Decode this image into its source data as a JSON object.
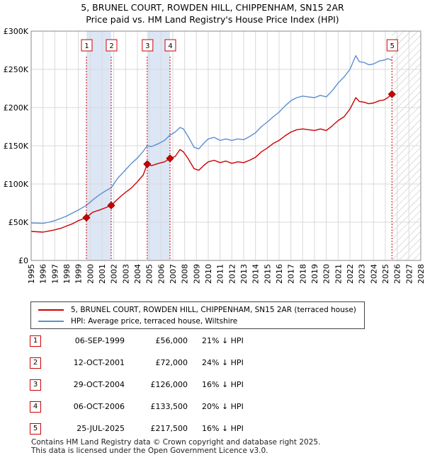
{
  "title_line1": "5, BRUNEL COURT, ROWDEN HILL, CHIPPENHAM, SN15 2AR",
  "title_line2": "Price paid vs. HM Land Registry's House Price Index (HPI)",
  "chart_data": {
    "type": "line",
    "x_range": [
      1995,
      2028
    ],
    "y_range": [
      0,
      300000
    ],
    "y_ticks": [
      0,
      50000,
      100000,
      150000,
      200000,
      250000,
      300000
    ],
    "y_tick_labels": [
      "£0",
      "£50K",
      "£100K",
      "£150K",
      "£200K",
      "£250K",
      "£300K"
    ],
    "x_ticks": [
      1995,
      1996,
      1997,
      1998,
      1999,
      2000,
      2001,
      2002,
      2003,
      2004,
      2005,
      2006,
      2007,
      2008,
      2009,
      2010,
      2011,
      2012,
      2013,
      2014,
      2015,
      2016,
      2017,
      2018,
      2019,
      2020,
      2021,
      2022,
      2023,
      2024,
      2025,
      2026,
      2027,
      2028
    ],
    "forecast_start": 2025.6,
    "colors": {
      "property": "#cc0000",
      "hpi": "#5b8fd0",
      "band": "#dde6f5"
    },
    "bands": [
      [
        1999.68,
        2001.78
      ],
      [
        2004.83,
        2006.76
      ]
    ],
    "series": [
      {
        "name": "5, BRUNEL COURT, ROWDEN HILL, CHIPPENHAM, SN15 2AR (terraced house)",
        "points": [
          [
            1995.0,
            38000
          ],
          [
            1996.0,
            37000
          ],
          [
            1996.5,
            38500
          ],
          [
            1997.0,
            40000
          ],
          [
            1997.5,
            42000
          ],
          [
            1998.0,
            45000
          ],
          [
            1998.5,
            48000
          ],
          [
            1999.0,
            52000
          ],
          [
            1999.68,
            56000
          ],
          [
            2000.2,
            63000
          ],
          [
            2000.8,
            66000
          ],
          [
            2001.3,
            69000
          ],
          [
            2001.78,
            72000
          ],
          [
            2002.3,
            80000
          ],
          [
            2002.9,
            88000
          ],
          [
            2003.5,
            95000
          ],
          [
            2004.0,
            103000
          ],
          [
            2004.5,
            112000
          ],
          [
            2004.83,
            126000
          ],
          [
            2005.2,
            124000
          ],
          [
            2005.8,
            127000
          ],
          [
            2006.3,
            129000
          ],
          [
            2006.76,
            133500
          ],
          [
            2007.2,
            136000
          ],
          [
            2007.6,
            145000
          ],
          [
            2007.9,
            142000
          ],
          [
            2008.3,
            133000
          ],
          [
            2008.8,
            120000
          ],
          [
            2009.2,
            118000
          ],
          [
            2009.6,
            124000
          ],
          [
            2010.0,
            129000
          ],
          [
            2010.5,
            131000
          ],
          [
            2011.0,
            128000
          ],
          [
            2011.5,
            130000
          ],
          [
            2012.0,
            127000
          ],
          [
            2012.5,
            129000
          ],
          [
            2013.0,
            128000
          ],
          [
            2013.5,
            131000
          ],
          [
            2014.0,
            135000
          ],
          [
            2014.5,
            142000
          ],
          [
            2015.0,
            147000
          ],
          [
            2015.5,
            153000
          ],
          [
            2016.0,
            157000
          ],
          [
            2016.5,
            163000
          ],
          [
            2017.0,
            168000
          ],
          [
            2017.5,
            171000
          ],
          [
            2018.0,
            172000
          ],
          [
            2018.5,
            171000
          ],
          [
            2019.0,
            170000
          ],
          [
            2019.5,
            172000
          ],
          [
            2020.0,
            170000
          ],
          [
            2020.5,
            176000
          ],
          [
            2021.0,
            183000
          ],
          [
            2021.5,
            188000
          ],
          [
            2022.0,
            198000
          ],
          [
            2022.5,
            213000
          ],
          [
            2022.8,
            208000
          ],
          [
            2023.2,
            207000
          ],
          [
            2023.6,
            205000
          ],
          [
            2024.0,
            206000
          ],
          [
            2024.5,
            209000
          ],
          [
            2024.9,
            210000
          ],
          [
            2025.2,
            213000
          ],
          [
            2025.56,
            217500
          ]
        ]
      },
      {
        "name": "HPI: Average price, terraced house, Wiltshire",
        "points": [
          [
            1995.0,
            49000
          ],
          [
            1996.0,
            48500
          ],
          [
            1996.5,
            50000
          ],
          [
            1997.0,
            52000
          ],
          [
            1997.5,
            55000
          ],
          [
            1998.0,
            58000
          ],
          [
            1998.5,
            62000
          ],
          [
            1999.0,
            66000
          ],
          [
            1999.68,
            72000
          ],
          [
            2000.2,
            79000
          ],
          [
            2000.8,
            86000
          ],
          [
            2001.3,
            91000
          ],
          [
            2001.78,
            95000
          ],
          [
            2002.3,
            107000
          ],
          [
            2002.9,
            117000
          ],
          [
            2003.5,
            127000
          ],
          [
            2004.0,
            134000
          ],
          [
            2004.5,
            143000
          ],
          [
            2004.83,
            150000
          ],
          [
            2005.2,
            149000
          ],
          [
            2005.8,
            153000
          ],
          [
            2006.3,
            157000
          ],
          [
            2006.76,
            164000
          ],
          [
            2007.2,
            168000
          ],
          [
            2007.6,
            174000
          ],
          [
            2007.9,
            172000
          ],
          [
            2008.3,
            162000
          ],
          [
            2008.8,
            148000
          ],
          [
            2009.2,
            146000
          ],
          [
            2009.6,
            153000
          ],
          [
            2010.0,
            159000
          ],
          [
            2010.5,
            161000
          ],
          [
            2011.0,
            157000
          ],
          [
            2011.5,
            159000
          ],
          [
            2012.0,
            157000
          ],
          [
            2012.5,
            159000
          ],
          [
            2013.0,
            158000
          ],
          [
            2013.5,
            162000
          ],
          [
            2014.0,
            167000
          ],
          [
            2014.5,
            175000
          ],
          [
            2015.0,
            181000
          ],
          [
            2015.5,
            188000
          ],
          [
            2016.0,
            194000
          ],
          [
            2016.5,
            202000
          ],
          [
            2017.0,
            209000
          ],
          [
            2017.5,
            213000
          ],
          [
            2018.0,
            215000
          ],
          [
            2018.5,
            214000
          ],
          [
            2019.0,
            213000
          ],
          [
            2019.5,
            216000
          ],
          [
            2020.0,
            214000
          ],
          [
            2020.5,
            222000
          ],
          [
            2021.0,
            232000
          ],
          [
            2021.5,
            240000
          ],
          [
            2022.0,
            250000
          ],
          [
            2022.5,
            268000
          ],
          [
            2022.8,
            260000
          ],
          [
            2023.2,
            259000
          ],
          [
            2023.6,
            256000
          ],
          [
            2024.0,
            257000
          ],
          [
            2024.5,
            261000
          ],
          [
            2024.9,
            262000
          ],
          [
            2025.2,
            264000
          ],
          [
            2025.56,
            262000
          ]
        ]
      }
    ],
    "sales": [
      {
        "label": "1",
        "x": 1999.68,
        "y": 56000
      },
      {
        "label": "2",
        "x": 2001.78,
        "y": 72000
      },
      {
        "label": "3",
        "x": 2004.83,
        "y": 126000
      },
      {
        "label": "4",
        "x": 2006.76,
        "y": 133500
      },
      {
        "label": "5",
        "x": 2025.56,
        "y": 217500
      }
    ]
  },
  "legend": {
    "property": "5, BRUNEL COURT, ROWDEN HILL, CHIPPENHAM, SN15 2AR (terraced house)",
    "hpi": "HPI: Average price, terraced house, Wiltshire"
  },
  "transactions": [
    {
      "num": "1",
      "date": "06-SEP-1999",
      "price": "£56,000",
      "hpi": "21% ↓ HPI"
    },
    {
      "num": "2",
      "date": "12-OCT-2001",
      "price": "£72,000",
      "hpi": "24% ↓ HPI"
    },
    {
      "num": "3",
      "date": "29-OCT-2004",
      "price": "£126,000",
      "hpi": "16% ↓ HPI"
    },
    {
      "num": "4",
      "date": "06-OCT-2006",
      "price": "£133,500",
      "hpi": "20% ↓ HPI"
    },
    {
      "num": "5",
      "date": "25-JUL-2025",
      "price": "£217,500",
      "hpi": "16% ↓ HPI"
    }
  ],
  "footer_line1": "Contains HM Land Registry data © Crown copyright and database right 2025.",
  "footer_line2": "This data is licensed under the Open Government Licence v3.0."
}
